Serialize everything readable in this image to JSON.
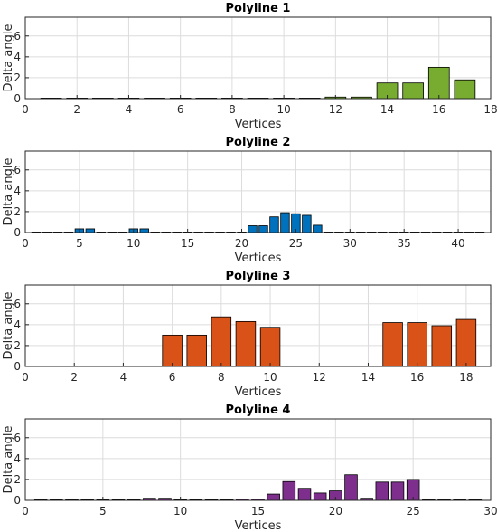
{
  "chart_data": [
    {
      "type": "bar",
      "title": "Polyline 1",
      "xlabel": "Vertices",
      "ylabel": "Delta angle",
      "xlim": [
        0,
        18
      ],
      "ylim": [
        0,
        7.8
      ],
      "xticks": [
        0,
        2,
        4,
        6,
        8,
        10,
        12,
        14,
        16,
        18
      ],
      "yticks": [
        0,
        2,
        4,
        6
      ],
      "grid": true,
      "color": "#77ac30",
      "x": [
        1,
        2,
        3,
        4,
        5,
        6,
        7,
        8,
        9,
        10,
        11,
        12,
        13,
        14,
        15,
        16,
        17
      ],
      "values": [
        0,
        0,
        0,
        0,
        0,
        0,
        0,
        0,
        0,
        0,
        0,
        0.15,
        0.15,
        1.5,
        1.5,
        3.0,
        1.8
      ]
    },
    {
      "type": "bar",
      "title": "Polyline 2",
      "xlabel": "Vertices",
      "ylabel": "Delta angle",
      "xlim": [
        0,
        43
      ],
      "ylim": [
        0,
        7.8
      ],
      "xticks": [
        0,
        5,
        10,
        15,
        20,
        25,
        30,
        35,
        40
      ],
      "yticks": [
        0,
        2,
        4,
        6
      ],
      "grid": true,
      "color": "#0072bd",
      "x": [
        1,
        2,
        3,
        4,
        5,
        6,
        7,
        8,
        9,
        10,
        11,
        12,
        13,
        14,
        15,
        16,
        17,
        18,
        19,
        20,
        21,
        22,
        23,
        24,
        25,
        26,
        27,
        28,
        29,
        30,
        31,
        32,
        33,
        34,
        35,
        36,
        37,
        38,
        39,
        40,
        41,
        42
      ],
      "values": [
        0,
        0,
        0,
        0,
        0.35,
        0.35,
        0,
        0,
        0,
        0.35,
        0.35,
        0,
        0,
        0,
        0,
        0,
        0,
        0,
        0,
        0,
        0.65,
        0.65,
        1.5,
        1.9,
        1.8,
        1.65,
        0.7,
        0,
        0,
        0,
        0,
        0,
        0,
        0,
        0,
        0,
        0,
        0,
        0,
        0,
        0,
        0
      ]
    },
    {
      "type": "bar",
      "title": "Polyline 3",
      "xlabel": "Vertices",
      "ylabel": "Delta angle",
      "xlim": [
        0,
        19
      ],
      "ylim": [
        0,
        7.8
      ],
      "xticks": [
        0,
        2,
        4,
        6,
        8,
        10,
        12,
        14,
        16,
        18
      ],
      "yticks": [
        0,
        2,
        4,
        6
      ],
      "grid": true,
      "color": "#d95319",
      "x": [
        1,
        2,
        3,
        4,
        5,
        6,
        7,
        8,
        9,
        10,
        11,
        12,
        13,
        14,
        15,
        16,
        17,
        18
      ],
      "values": [
        0,
        0,
        0,
        0,
        0,
        3.0,
        3.0,
        4.75,
        4.3,
        3.75,
        0,
        0,
        0,
        0,
        4.2,
        4.2,
        3.9,
        4.5
      ]
    },
    {
      "type": "bar",
      "title": "Polyline 4",
      "xlabel": "Vertices",
      "ylabel": "Delta angle",
      "xlim": [
        0,
        30
      ],
      "ylim": [
        0,
        7.8
      ],
      "xticks": [
        0,
        5,
        10,
        15,
        20,
        25,
        30
      ],
      "yticks": [
        0,
        2,
        4,
        6
      ],
      "grid": true,
      "color": "#7e2f8e",
      "x": [
        1,
        2,
        3,
        4,
        5,
        6,
        7,
        8,
        9,
        10,
        11,
        12,
        13,
        14,
        15,
        16,
        17,
        18,
        19,
        20,
        21,
        22,
        23,
        24,
        25,
        26,
        27,
        28,
        29
      ],
      "values": [
        0,
        0,
        0,
        0,
        0,
        0,
        0,
        0.2,
        0.2,
        0,
        0,
        0,
        0,
        0.1,
        0.1,
        0.6,
        1.8,
        1.15,
        0.7,
        0.9,
        2.45,
        0.2,
        1.75,
        1.75,
        2.0,
        0,
        0,
        0,
        0
      ]
    }
  ]
}
